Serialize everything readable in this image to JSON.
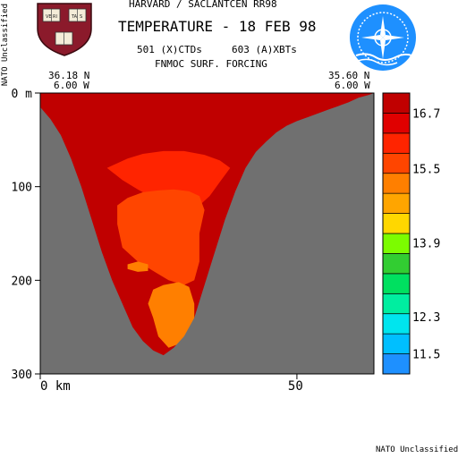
{
  "header": {
    "line1": "HARVARD / SACLANTCEN RR98",
    "line2": "TEMPERATURE - 18 FEB 98",
    "line3a": "501 (X)CTDs",
    "line3b": "603 (A)XBTs",
    "line4": "FNMOC SURF. FORCING"
  },
  "classification_side": "NATO Unclassified",
  "classification_bottom": "NATO Unclassified",
  "logos": {
    "left": "harvard-veritas-shield-icon",
    "right": "nato-saclantcen-emblem-icon"
  },
  "start_point": {
    "lat": "36.18 N",
    "lon": "6.00 W"
  },
  "end_point": {
    "lat": "35.60 N",
    "lon": "6.00 W"
  },
  "colors": {
    "terrain": "#707070",
    "levels": [
      "#1e90ff",
      "#00bfff",
      "#00e5ee",
      "#00eea0",
      "#00e060",
      "#32cd32",
      "#7cfc00",
      "#ffd700",
      "#ffa500",
      "#ff7f00",
      "#ff4500",
      "#ff2400",
      "#e00000",
      "#c00000"
    ]
  },
  "chart_data": {
    "type": "heatmap",
    "title": "TEMPERATURE - 18 FEB 98",
    "xlabel": "km",
    "ylabel": "m",
    "x_ticks": [
      0,
      50
    ],
    "x_tick_labels": [
      "0 km",
      "50"
    ],
    "y_ticks": [
      0,
      100,
      200,
      300
    ],
    "y_tick_labels": [
      "0 m",
      "100",
      "200",
      "300"
    ],
    "xlim": [
      0,
      65
    ],
    "ylim": [
      0,
      300
    ],
    "colorbar": {
      "tick_labels": [
        "16.7",
        "15.5",
        "13.9",
        "12.3",
        "11.5"
      ],
      "tick_values": [
        16.7,
        15.5,
        13.9,
        12.3,
        11.5
      ],
      "level_count": 14
    },
    "bathymetry": [
      [
        0,
        0
      ],
      [
        0,
        15
      ],
      [
        2,
        28
      ],
      [
        4,
        45
      ],
      [
        6,
        70
      ],
      [
        8,
        100
      ],
      [
        10,
        135
      ],
      [
        12,
        170
      ],
      [
        14,
        200
      ],
      [
        16,
        225
      ],
      [
        18,
        250
      ],
      [
        20,
        265
      ],
      [
        22,
        275
      ],
      [
        24,
        280
      ],
      [
        26,
        272
      ],
      [
        28,
        260
      ],
      [
        30,
        240
      ],
      [
        32,
        205
      ],
      [
        34,
        170
      ],
      [
        36,
        135
      ],
      [
        38,
        105
      ],
      [
        40,
        80
      ],
      [
        42,
        63
      ],
      [
        44,
        52
      ],
      [
        46,
        42
      ],
      [
        48,
        35
      ],
      [
        50,
        30
      ],
      [
        52,
        26
      ],
      [
        54,
        22
      ],
      [
        56,
        18
      ],
      [
        58,
        14
      ],
      [
        60,
        10
      ],
      [
        62,
        5
      ],
      [
        64,
        2
      ],
      [
        65,
        0
      ]
    ],
    "isotherms": [
      {
        "value": 15.9,
        "contour": [
          [
            13,
            80
          ],
          [
            15,
            75
          ],
          [
            17,
            70
          ],
          [
            20,
            65
          ],
          [
            24,
            62
          ],
          [
            28,
            62
          ],
          [
            32,
            66
          ],
          [
            35,
            72
          ],
          [
            37,
            80
          ],
          [
            35,
            95
          ],
          [
            33,
            110
          ],
          [
            31,
            120
          ],
          [
            28,
            125
          ],
          [
            25,
            120
          ],
          [
            22,
            112
          ],
          [
            19,
            103
          ],
          [
            16,
            93
          ]
        ]
      },
      {
        "value": 15.5,
        "contour": [
          [
            15,
            120
          ],
          [
            17,
            112
          ],
          [
            20,
            106
          ],
          [
            23,
            104
          ],
          [
            26,
            103
          ],
          [
            29,
            105
          ],
          [
            31,
            110
          ],
          [
            32,
            125
          ],
          [
            31,
            150
          ],
          [
            31,
            180
          ],
          [
            30,
            200
          ],
          [
            28,
            205
          ],
          [
            25,
            200
          ],
          [
            22,
            190
          ],
          [
            19,
            180
          ],
          [
            16,
            165
          ],
          [
            15,
            140
          ]
        ]
      },
      {
        "value": 15.1,
        "contour": [
          [
            22,
            210
          ],
          [
            24,
            205
          ],
          [
            27,
            202
          ],
          [
            29,
            207
          ],
          [
            30,
            225
          ],
          [
            30,
            245
          ],
          [
            29,
            258
          ],
          [
            27,
            268
          ],
          [
            25,
            272
          ],
          [
            23,
            260
          ],
          [
            22,
            240
          ],
          [
            21,
            225
          ]
        ]
      },
      {
        "value": 15.1,
        "contour": [
          [
            17,
            183
          ],
          [
            19,
            180
          ],
          [
            21,
            183
          ],
          [
            21,
            190
          ],
          [
            19,
            191
          ],
          [
            17,
            188
          ]
        ]
      }
    ]
  }
}
